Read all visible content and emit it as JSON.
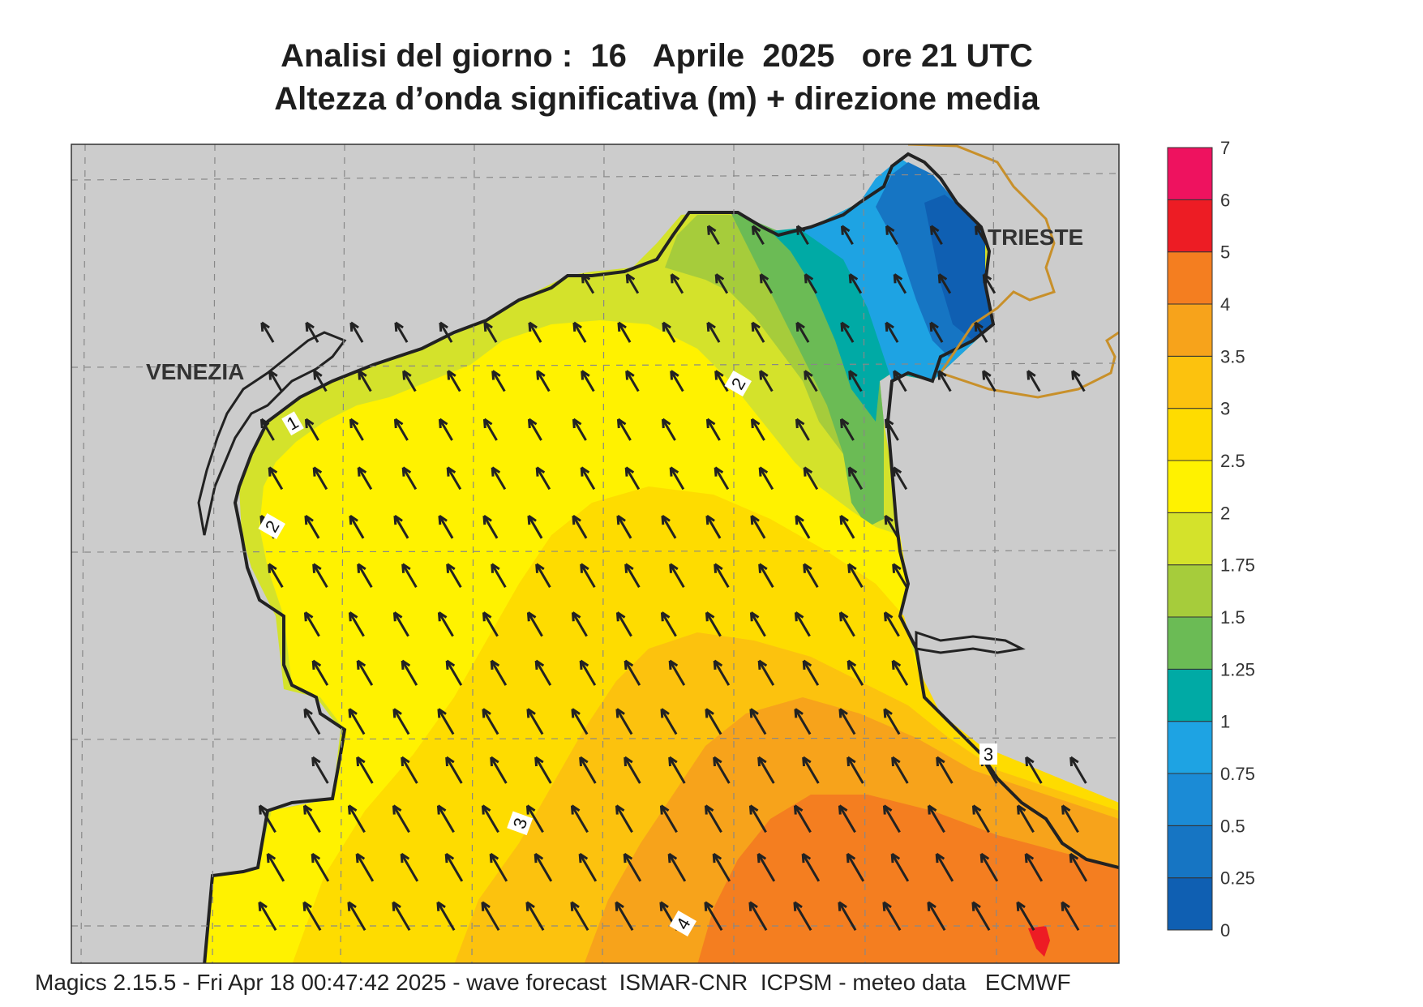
{
  "header": {
    "line1": "Analisi del giorno :  16   Aprile  2025   ore 21 UTC",
    "line2": "Altezza d’onda significativa (m) + direzione media"
  },
  "map": {
    "place_labels": [
      "VENEZIA",
      "TRIESTE"
    ],
    "contour_labels": [
      "1",
      "2",
      "2",
      "3",
      "3",
      "4"
    ],
    "land_color": "#cccccc",
    "coast_color": "#222222",
    "border_color": "#c8902a",
    "arrow_color": "#222222",
    "arrow_direction": "towards north-west"
  },
  "legend": {
    "ticks": [
      "0",
      "0.25",
      "0.5",
      "0.75",
      "1",
      "1.25",
      "1.5",
      "1.75",
      "2",
      "2.5",
      "3",
      "3.5",
      "4",
      "5",
      "6",
      "7"
    ],
    "colors": [
      "#0f5fb2",
      "#1675c3",
      "#1b8bd6",
      "#1ea3e3",
      "#00aaa5",
      "#6bbb55",
      "#a6cc3b",
      "#d4e22b",
      "#fff200",
      "#fedc00",
      "#fcc20e",
      "#f7a31b",
      "#f47e20",
      "#ed1c24",
      "#ee125f"
    ]
  },
  "footer": {
    "text": "Magics 2.15.5 - Fri Apr 18 00:47:42 2025 - wave forecast  ISMAR-CNR  ICPSM - meteo data   ECMWF"
  }
}
